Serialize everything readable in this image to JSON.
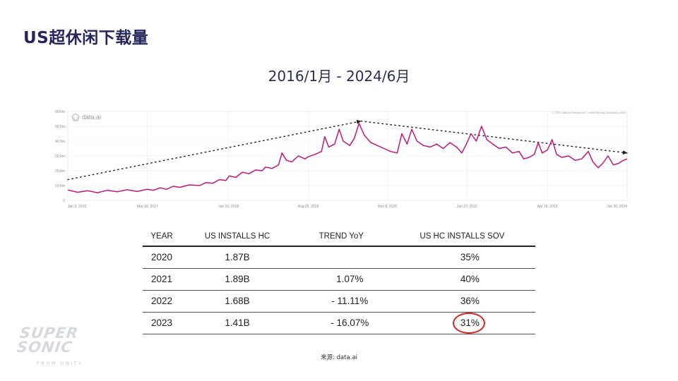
{
  "header": {
    "title": "US超休闲下载量",
    "subtitle": "2016/1月 - 2024/6月"
  },
  "chart_data": {
    "type": "line",
    "brand": "data.ai",
    "credit": "© 2024 data.ai Intelligence | market@data.ai/privacy-policy/",
    "y_ticks": [
      "0",
      "10.0m",
      "20.0m",
      "30.0m",
      "40.0m",
      "50.0m",
      "60.0m"
    ],
    "ylim": [
      0,
      60
    ],
    "y_unit": "m",
    "x_ticks": [
      {
        "label": "Jan 3, 2016",
        "t": 0.0
      },
      {
        "label": "Mar 19, 2017",
        "t": 1.21
      },
      {
        "label": "Jun 10, 2018",
        "t": 2.44
      },
      {
        "label": "Aug 25, 2019",
        "t": 3.65
      },
      {
        "label": "Nov 8, 2020",
        "t": 4.85
      },
      {
        "label": "Jan 23, 2022",
        "t": 6.06
      },
      {
        "label": "Apr 16, 2023",
        "t": 7.28
      },
      {
        "label": "Jun 30, 2024",
        "t": 8.49
      }
    ],
    "xlim": [
      0,
      8.49
    ],
    "series": [
      {
        "color": "#c2157a",
        "points": [
          [
            0.0,
            7
          ],
          [
            0.15,
            5.5
          ],
          [
            0.3,
            6.5
          ],
          [
            0.45,
            5.2
          ],
          [
            0.6,
            6.8
          ],
          [
            0.75,
            5.8
          ],
          [
            0.9,
            7.2
          ],
          [
            1.05,
            6
          ],
          [
            1.2,
            7.5
          ],
          [
            1.3,
            6.8
          ],
          [
            1.4,
            8.5
          ],
          [
            1.5,
            7.5
          ],
          [
            1.6,
            9.5
          ],
          [
            1.7,
            8.8
          ],
          [
            1.85,
            10.5
          ],
          [
            2.0,
            10
          ],
          [
            2.1,
            12
          ],
          [
            2.2,
            11.5
          ],
          [
            2.3,
            14
          ],
          [
            2.4,
            13.5
          ],
          [
            2.45,
            16.5
          ],
          [
            2.55,
            15.5
          ],
          [
            2.65,
            19
          ],
          [
            2.75,
            18
          ],
          [
            2.85,
            20.5
          ],
          [
            2.95,
            20
          ],
          [
            3.0,
            22.5
          ],
          [
            3.1,
            21.5
          ],
          [
            3.2,
            24
          ],
          [
            3.25,
            32
          ],
          [
            3.32,
            27
          ],
          [
            3.4,
            26
          ],
          [
            3.5,
            30
          ],
          [
            3.6,
            28
          ],
          [
            3.65,
            29.5
          ],
          [
            3.75,
            31
          ],
          [
            3.85,
            33
          ],
          [
            3.9,
            43
          ],
          [
            3.96,
            36
          ],
          [
            4.05,
            38
          ],
          [
            4.12,
            48
          ],
          [
            4.18,
            40
          ],
          [
            4.28,
            37
          ],
          [
            4.35,
            42
          ],
          [
            4.42,
            52
          ],
          [
            4.5,
            44
          ],
          [
            4.6,
            39
          ],
          [
            4.7,
            37
          ],
          [
            4.8,
            35
          ],
          [
            4.9,
            33
          ],
          [
            5.0,
            32
          ],
          [
            5.07,
            45
          ],
          [
            5.15,
            38
          ],
          [
            5.22,
            48
          ],
          [
            5.3,
            40
          ],
          [
            5.4,
            37
          ],
          [
            5.5,
            36
          ],
          [
            5.6,
            38
          ],
          [
            5.7,
            35
          ],
          [
            5.8,
            39
          ],
          [
            5.9,
            36
          ],
          [
            5.98,
            32
          ],
          [
            6.05,
            38
          ],
          [
            6.12,
            45
          ],
          [
            6.2,
            40
          ],
          [
            6.28,
            50
          ],
          [
            6.36,
            41
          ],
          [
            6.45,
            38
          ],
          [
            6.55,
            35
          ],
          [
            6.65,
            36
          ],
          [
            6.75,
            32
          ],
          [
            6.85,
            33
          ],
          [
            6.92,
            28
          ],
          [
            7.0,
            29
          ],
          [
            7.08,
            31
          ],
          [
            7.14,
            39
          ],
          [
            7.2,
            32
          ],
          [
            7.28,
            34
          ],
          [
            7.35,
            41
          ],
          [
            7.42,
            31
          ],
          [
            7.5,
            29
          ],
          [
            7.6,
            30
          ],
          [
            7.7,
            27
          ],
          [
            7.8,
            28
          ],
          [
            7.9,
            33
          ],
          [
            7.97,
            26
          ],
          [
            8.05,
            22
          ],
          [
            8.12,
            25
          ],
          [
            8.2,
            30
          ],
          [
            8.28,
            24
          ],
          [
            8.36,
            25
          ],
          [
            8.43,
            27
          ],
          [
            8.49,
            28
          ]
        ]
      }
    ],
    "trend_lines": [
      {
        "from": [
          0.0,
          14
        ],
        "to": [
          4.45,
          53.5
        ]
      },
      {
        "from": [
          4.45,
          53.5
        ],
        "to": [
          8.49,
          32
        ]
      }
    ]
  },
  "table": {
    "headers": [
      "YEAR",
      "US INSTALLS HC",
      "TREND YoY",
      "US HC INSTALLS SOV"
    ],
    "rows": [
      [
        "2020",
        "1.87B",
        "",
        "35%"
      ],
      [
        "2021",
        "1.89B",
        "1.07%",
        "40%"
      ],
      [
        "2022",
        "1.68B",
        "- 11.11%",
        "36%"
      ],
      [
        "2023",
        "1.41B",
        "- 16.07%",
        "31%"
      ]
    ],
    "highlight_color": "#e0221f"
  },
  "footer": {
    "source": "来源: data.ai"
  },
  "logo": {
    "line1": "SUPER",
    "line2": "SONIC",
    "tagline": "FROM UNITY"
  }
}
